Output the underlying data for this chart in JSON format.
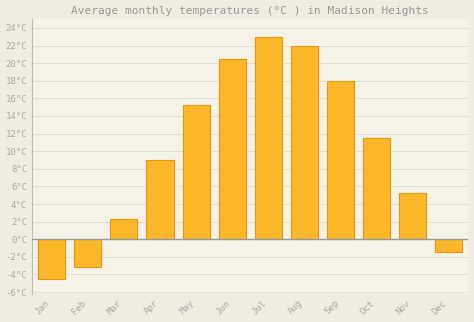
{
  "title": "Average monthly temperatures (°C ) in Madison Heights",
  "months": [
    "Jan",
    "Feb",
    "Mar",
    "Apr",
    "May",
    "Jun",
    "Jul",
    "Aug",
    "Sep",
    "Oct",
    "Nov",
    "Dec"
  ],
  "values": [
    -4.5,
    -3.2,
    2.3,
    9.0,
    15.2,
    20.5,
    23.0,
    22.0,
    18.0,
    11.5,
    5.2,
    -1.5
  ],
  "bar_color": "#FDB72A",
  "bar_edge_color": "#E8960A",
  "background_color": "#f0ece0",
  "plot_bg_color": "#f5f2e8",
  "grid_color": "#e0ddd0",
  "ytick_labels": [
    "-6°C",
    "-4°C",
    "-2°C",
    "0°C",
    "2°C",
    "4°C",
    "6°C",
    "8°C",
    "10°C",
    "12°C",
    "14°C",
    "16°C",
    "18°C",
    "20°C",
    "22°C",
    "24°C"
  ],
  "ytick_values": [
    -6,
    -4,
    -2,
    0,
    2,
    4,
    6,
    8,
    10,
    12,
    14,
    16,
    18,
    20,
    22,
    24
  ],
  "ylim": [
    -6.2,
    25
  ],
  "title_fontsize": 8,
  "tick_fontsize": 6.5,
  "zero_line_color": "#999999",
  "tick_color": "#aaaaaa",
  "left_spine_color": "#bbbbbb"
}
